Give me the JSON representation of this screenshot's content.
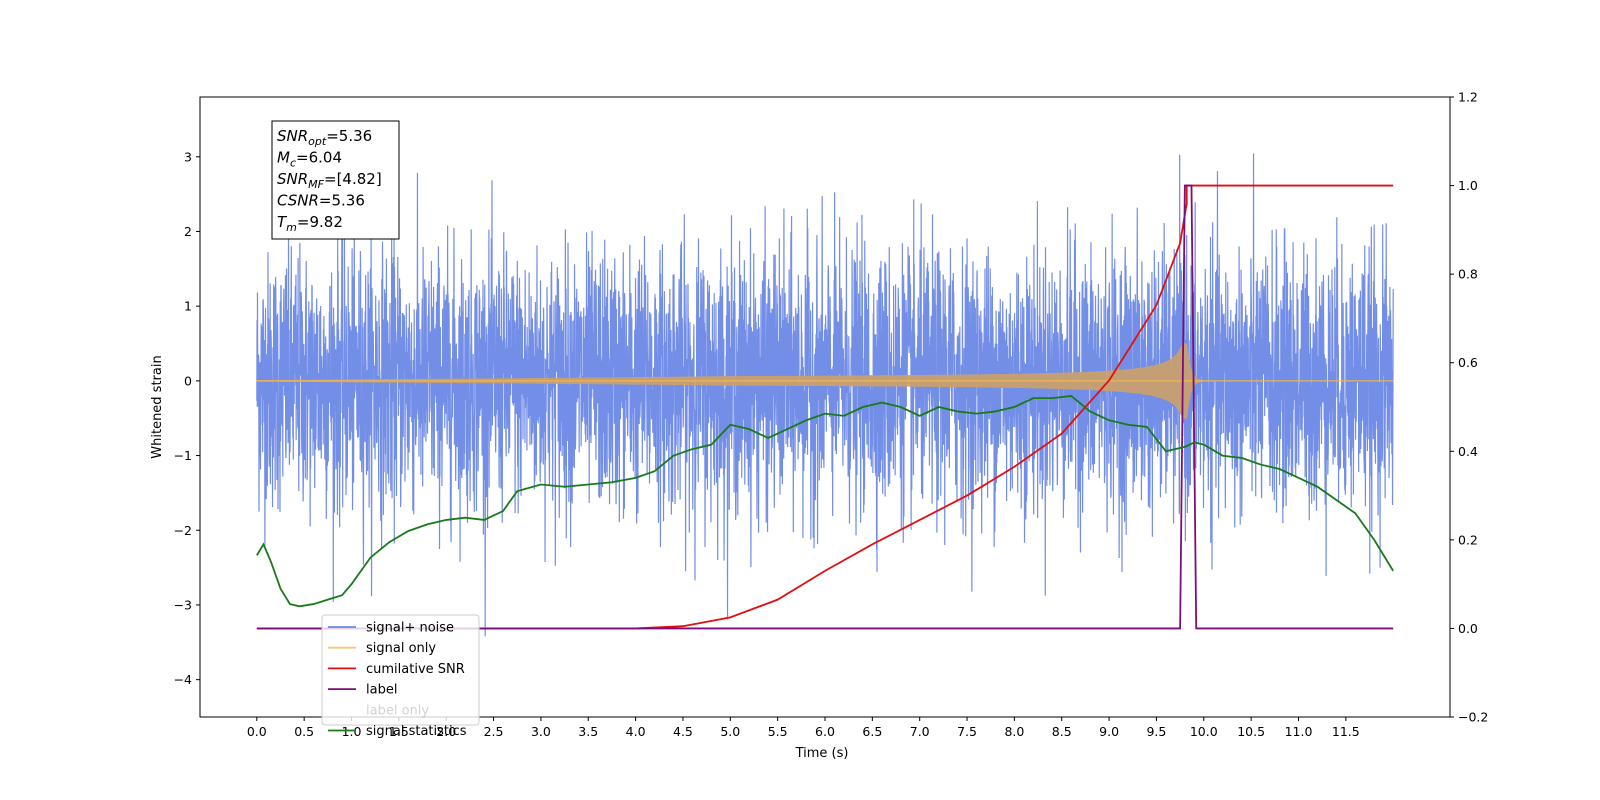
{
  "chart_data": {
    "type": "line",
    "xlabel": "Time (s)",
    "ylabel": "Whitened strain",
    "xlim": [
      -0.6,
      12.6
    ],
    "ylim": [
      -4.5,
      3.8
    ],
    "ylim_right": [
      -0.2,
      1.2
    ],
    "x_ticks": [
      "0.0",
      "0.5",
      "1.0",
      "1.5",
      "2.0",
      "2.5",
      "3.0",
      "3.5",
      "4.0",
      "4.5",
      "5.0",
      "5.5",
      "6.0",
      "6.5",
      "7.0",
      "7.5",
      "8.0",
      "8.5",
      "9.0",
      "9.5",
      "10.0",
      "10.5",
      "11.0",
      "11.5"
    ],
    "y_ticks_left": [
      "3",
      "2",
      "1",
      "0",
      "−1",
      "−2",
      "−3",
      "−4"
    ],
    "y_ticks_right": [
      "1.2",
      "1.0",
      "0.8",
      "0.6",
      "0.4",
      "0.2",
      "0.0",
      "−0.2"
    ],
    "grid": false,
    "legend_position": "lower-left",
    "annotation_lines": [
      {
        "main": "SNR",
        "sub": "opt",
        "rest": "=5.36"
      },
      {
        "main": "M",
        "sub": "c",
        "rest": "=6.04"
      },
      {
        "main": "SNR",
        "sub": "MF",
        "rest": "=[4.82]"
      },
      {
        "main": "CSNR",
        "sub": "",
        "rest": "=5.36"
      },
      {
        "main": "T",
        "sub": "m",
        "rest": "=9.82"
      }
    ],
    "series": [
      {
        "name": "signal+ noise",
        "color": "#6b88e6",
        "axis": "left",
        "time_range": [
          0.0,
          12.0
        ],
        "noise_std": 1.0
      },
      {
        "name": "signal only",
        "color": "#f5b94d",
        "axis": "left",
        "merger_time": 9.82,
        "peak_amplitude": 0.5
      },
      {
        "name": "cumilative SNR",
        "color": "#e01010",
        "axis": "right",
        "x": [
          0.0,
          4.0,
          4.5,
          5.0,
          5.5,
          6.0,
          6.5,
          7.0,
          7.5,
          8.0,
          8.5,
          9.0,
          9.5,
          9.75,
          9.82,
          9.82,
          12.0
        ],
        "y": [
          0.0,
          0.0,
          0.005,
          0.025,
          0.065,
          0.13,
          0.19,
          0.245,
          0.3,
          0.365,
          0.44,
          0.56,
          0.73,
          0.87,
          0.96,
          1.0,
          1.0
        ]
      },
      {
        "name": "label",
        "color": "#7a0f7a",
        "axis": "right",
        "x": [
          0.0,
          9.75,
          9.8,
          9.87,
          9.92,
          12.0
        ],
        "y": [
          0.0,
          0.0,
          1.0,
          1.0,
          0.0,
          0.0
        ]
      },
      {
        "name": "label only",
        "color": "#7a0f7a",
        "axis": "right",
        "hidden_in_legend": true
      },
      {
        "name": "signal statistics",
        "color": "#1a7a1a",
        "axis": "right",
        "x": [
          0.0,
          0.07,
          0.15,
          0.25,
          0.35,
          0.45,
          0.6,
          0.75,
          0.9,
          1.0,
          1.2,
          1.4,
          1.6,
          1.8,
          2.0,
          2.2,
          2.4,
          2.6,
          2.75,
          3.0,
          3.25,
          3.5,
          3.75,
          4.0,
          4.2,
          4.4,
          4.6,
          4.8,
          5.0,
          5.2,
          5.4,
          5.6,
          5.8,
          6.0,
          6.2,
          6.4,
          6.6,
          6.8,
          7.0,
          7.2,
          7.4,
          7.6,
          7.8,
          8.0,
          8.2,
          8.4,
          8.6,
          8.8,
          9.0,
          9.2,
          9.4,
          9.6,
          9.8,
          9.9,
          10.0,
          10.2,
          10.4,
          10.6,
          10.8,
          11.0,
          11.2,
          11.4,
          11.6,
          11.8,
          12.0
        ],
        "y": [
          0.165,
          0.19,
          0.15,
          0.09,
          0.055,
          0.05,
          0.055,
          0.065,
          0.075,
          0.1,
          0.16,
          0.195,
          0.22,
          0.235,
          0.245,
          0.25,
          0.245,
          0.265,
          0.31,
          0.325,
          0.32,
          0.325,
          0.33,
          0.34,
          0.355,
          0.39,
          0.405,
          0.415,
          0.46,
          0.45,
          0.43,
          0.45,
          0.47,
          0.485,
          0.48,
          0.5,
          0.51,
          0.5,
          0.48,
          0.5,
          0.49,
          0.485,
          0.49,
          0.5,
          0.52,
          0.52,
          0.525,
          0.49,
          0.47,
          0.46,
          0.455,
          0.4,
          0.41,
          0.42,
          0.415,
          0.39,
          0.385,
          0.37,
          0.36,
          0.34,
          0.32,
          0.29,
          0.26,
          0.2,
          0.13
        ]
      }
    ]
  }
}
